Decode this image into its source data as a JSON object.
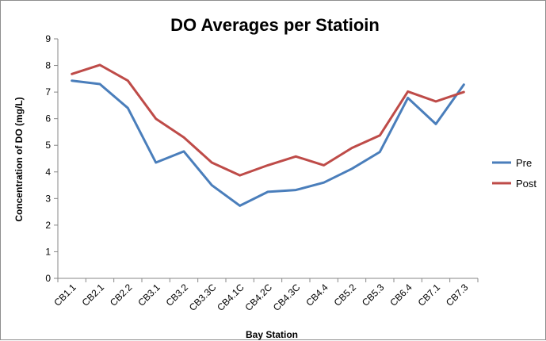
{
  "chart_data": {
    "type": "line",
    "title": "DO Averages per Statioin",
    "xlabel": "Bay Station",
    "ylabel": "Concentration of DO (mg/L)",
    "ylim": [
      0,
      9
    ],
    "yticks": [
      "0",
      "1",
      "2",
      "3",
      "4",
      "5",
      "6",
      "7",
      "8",
      "9"
    ],
    "grid": false,
    "legend_position": "right",
    "categories": [
      "CB1.1",
      "CB2.1",
      "CB2.2",
      "CB3.1",
      "CB3.2",
      "CB3.3C",
      "CB4.1C",
      "CB4.2C",
      "CB4.3C",
      "CB4.4",
      "CB5.2",
      "CB5.3",
      "CB6.4",
      "CB7.1",
      "CB7.3"
    ],
    "series": [
      {
        "name": "Pre",
        "color": "#4a7ebb",
        "values": [
          7.43,
          7.3,
          6.4,
          4.35,
          4.77,
          3.5,
          2.73,
          3.25,
          3.32,
          3.6,
          4.12,
          4.75,
          6.78,
          5.8,
          7.28
        ]
      },
      {
        "name": "Post",
        "color": "#be4b48",
        "values": [
          7.68,
          8.02,
          7.43,
          6.0,
          5.3,
          4.35,
          3.87,
          4.25,
          4.58,
          4.25,
          4.9,
          5.37,
          7.02,
          6.65,
          7.0
        ]
      }
    ]
  }
}
